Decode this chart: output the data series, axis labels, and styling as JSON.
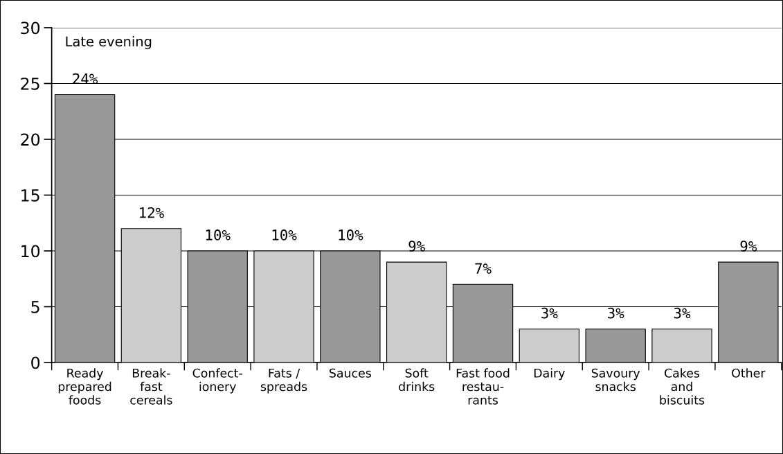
{
  "chart_data": {
    "type": "bar",
    "title": "Late evening",
    "categories": [
      "Ready\nprepared\nfoods",
      "Break-\nfast\ncereals",
      "Confect-\nionery",
      "Fats /\nspreads",
      "Sauces",
      "Soft\ndrinks",
      "Fast food\nrestau-\nrants",
      "Dairy",
      "Savoury\nsnacks",
      "Cakes\nand\nbiscuits",
      "Other"
    ],
    "values": [
      24,
      12,
      10,
      10,
      10,
      9,
      7,
      3,
      3,
      3,
      9
    ],
    "colors": [
      "#999999",
      "#cccccc",
      "#999999",
      "#cccccc",
      "#999999",
      "#cccccc",
      "#999999",
      "#cccccc",
      "#999999",
      "#cccccc",
      "#999999"
    ],
    "value_labels": [
      "24%",
      "12%",
      "10%",
      "10%",
      "10%",
      "9%",
      "7%",
      "3%",
      "3%",
      "3%",
      "9%"
    ],
    "ylim": [
      0,
      30
    ],
    "yticks": [
      0,
      5,
      10,
      15,
      20,
      25,
      30
    ],
    "grid": "y",
    "legend": false
  }
}
